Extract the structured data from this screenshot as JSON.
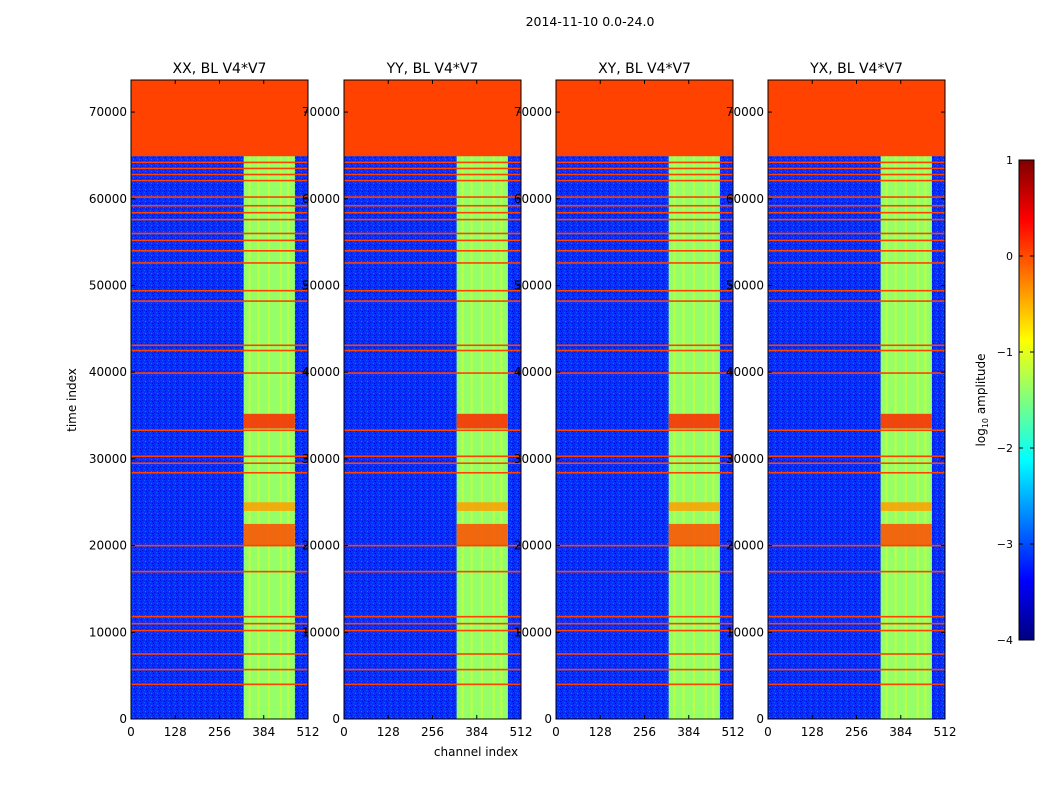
{
  "figure": {
    "suptitle": "2014-11-10 0.0-24.0",
    "xlabel": "channel index",
    "ylabel": "time index"
  },
  "colorbar": {
    "label_prefix": "log",
    "label_sub": "10",
    "label_suffix": " amplitude",
    "range": [
      -4,
      1
    ],
    "ticks": [
      {
        "value": 1,
        "label": "1"
      },
      {
        "value": 0,
        "label": "0"
      },
      {
        "value": -1,
        "label": "−1"
      },
      {
        "value": -2,
        "label": "−2"
      },
      {
        "value": -3,
        "label": "−3"
      },
      {
        "value": -4,
        "label": "−4"
      }
    ],
    "stops": [
      "#00007f",
      "#0000ff",
      "#007fff",
      "#00ffff",
      "#7fff7f",
      "#ffff00",
      "#ff7f00",
      "#ff0000",
      "#7f0000"
    ]
  },
  "chart_data": {
    "type": "heatmap",
    "panels": [
      {
        "id": "xx",
        "title": "XX, BL V4*V7",
        "show_ylabel": true,
        "show_xlabel": false
      },
      {
        "id": "yy",
        "title": "YY, BL V4*V7",
        "show_ylabel": false,
        "show_xlabel": true
      },
      {
        "id": "xy",
        "title": "XY, BL V4*V7",
        "show_ylabel": false,
        "show_xlabel": false
      },
      {
        "id": "yx",
        "title": "YX, BL V4*V7",
        "show_ylabel": false,
        "show_xlabel": false
      }
    ],
    "xlim": [
      0,
      512
    ],
    "ylim": [
      0,
      73700
    ],
    "xticks": [
      {
        "value": 0,
        "label": "0"
      },
      {
        "value": 128,
        "label": "128"
      },
      {
        "value": 256,
        "label": "256"
      },
      {
        "value": 384,
        "label": "384"
      },
      {
        "value": 512,
        "label": "512"
      }
    ],
    "yticks": [
      {
        "value": 0,
        "label": "0"
      },
      {
        "value": 10000,
        "label": "10000"
      },
      {
        "value": 20000,
        "label": "20000"
      },
      {
        "value": 30000,
        "label": "30000"
      },
      {
        "value": 40000,
        "label": "40000"
      },
      {
        "value": 50000,
        "label": "50000"
      },
      {
        "value": 60000,
        "label": "60000"
      },
      {
        "value": 70000,
        "label": "70000"
      }
    ],
    "background_level_log10": -3.1,
    "masked_region": {
      "time_from": 65000,
      "time_to": 73700,
      "level_log10": 0.05
    },
    "rfi_band": {
      "channel_from": 326,
      "channel_to": 474,
      "level_log10": -1.2
    },
    "rfi_band_subchannels": [
      {
        "from": 326,
        "to": 340
      },
      {
        "from": 346,
        "to": 366
      },
      {
        "from": 372,
        "to": 396
      },
      {
        "from": 402,
        "to": 430
      },
      {
        "from": 436,
        "to": 452
      },
      {
        "from": 458,
        "to": 474
      }
    ],
    "flagged_rows_time": [
      4000,
      5700,
      7500,
      10200,
      11000,
      11800,
      17000,
      20000,
      28400,
      29500,
      30300,
      33300,
      39900,
      42500,
      43100,
      48200,
      49400,
      52600,
      54000,
      55200,
      56000,
      57600,
      58400,
      59200,
      60200,
      62100,
      62800,
      63500,
      64200,
      65000
    ],
    "bright_bursts": [
      {
        "time_from": 33500,
        "time_to": 35200,
        "level_log10": 0.2
      },
      {
        "time_from": 20000,
        "time_to": 22500,
        "level_log10": 0.0
      },
      {
        "time_from": 24000,
        "time_to": 25000,
        "level_log10": -0.4
      }
    ]
  }
}
